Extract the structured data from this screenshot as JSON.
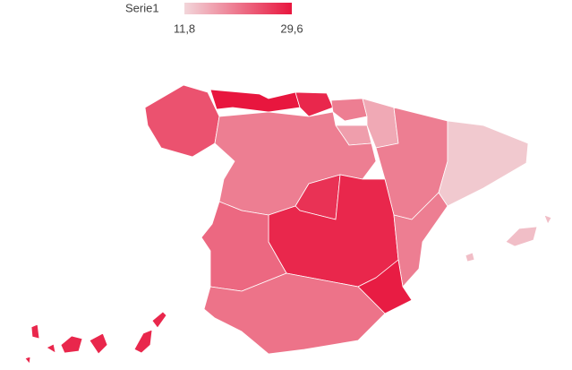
{
  "chart_data": {
    "type": "map",
    "legend_title": "Serie1",
    "scale_min": {
      "value": 11.8,
      "label": "11,8"
    },
    "scale_max": {
      "value": 29.6,
      "label": "29,6"
    },
    "color_low": "#f2d6da",
    "color_high": "#e8163e",
    "values": [
      24,
      29.6,
      28,
      20,
      16,
      17,
      20,
      13,
      20,
      27,
      28,
      22,
      20,
      29,
      21,
      14,
      28
    ]
  }
}
